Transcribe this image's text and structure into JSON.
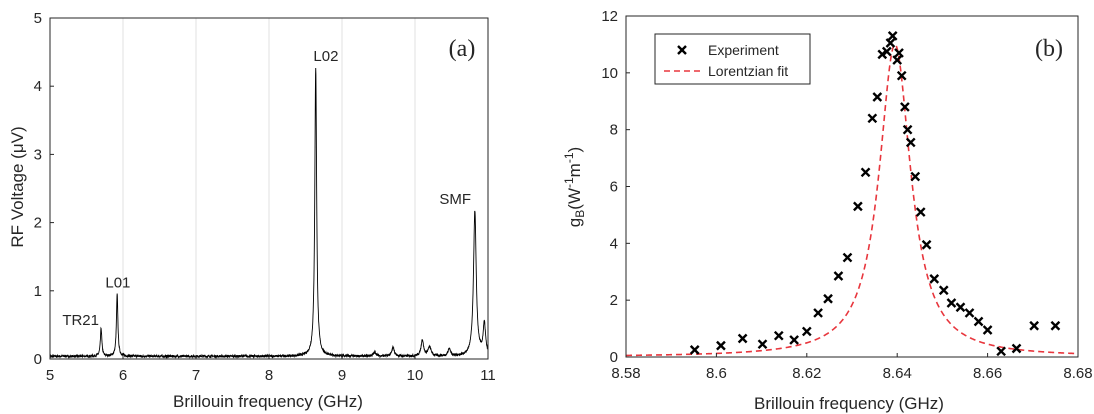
{
  "chart_data": [
    {
      "type": "line",
      "panel_label": "(a)",
      "xlabel": "Brillouin frequency (GHz)",
      "ylabel": "RF Voltage (μV)",
      "xlim": [
        5,
        11
      ],
      "ylim": [
        0,
        5
      ],
      "xticks": [
        "5",
        "6",
        "7",
        "8",
        "9",
        "10",
        "11"
      ],
      "yticks": [
        "0",
        "1",
        "2",
        "3",
        "4",
        "5"
      ],
      "grid": "x-vertical-only",
      "series_color": "#000000",
      "baseline": 0.04,
      "peaks": [
        {
          "x": 5.7,
          "y": 0.45,
          "width": 0.012
        },
        {
          "x": 5.92,
          "y": 0.95,
          "width": 0.012
        },
        {
          "x": 8.64,
          "y": 4.28,
          "width": 0.015
        },
        {
          "x": 9.45,
          "y": 0.1,
          "width": 0.02
        },
        {
          "x": 9.7,
          "y": 0.17,
          "width": 0.02
        },
        {
          "x": 10.1,
          "y": 0.28,
          "width": 0.02
        },
        {
          "x": 10.2,
          "y": 0.17,
          "width": 0.025
        },
        {
          "x": 10.47,
          "y": 0.15,
          "width": 0.02
        },
        {
          "x": 10.82,
          "y": 2.17,
          "width": 0.022
        },
        {
          "x": 10.95,
          "y": 0.5,
          "width": 0.02
        }
      ],
      "annotations": [
        {
          "text": "TR21",
          "x": 5.42,
          "y": 0.5
        },
        {
          "text": "L01",
          "x": 5.93,
          "y": 1.05
        },
        {
          "text": "L02",
          "x": 8.78,
          "y": 4.37
        },
        {
          "text": "SMF",
          "x": 10.55,
          "y": 2.27
        }
      ]
    },
    {
      "type": "scatter",
      "panel_label": "(b)",
      "xlabel": "Brillouin frequency (GHz)",
      "ylabel": "g_B (W^-1 m^-1)",
      "ylabel_parts": {
        "main": "g",
        "sub": "B",
        "open": "(W",
        "sup1": "-1",
        "mid": "m",
        "sup2": "-1",
        "close": ")"
      },
      "xlim": [
        8.58,
        8.68
      ],
      "ylim": [
        0,
        12
      ],
      "xticks": [
        "8.58",
        "8.6",
        "8.62",
        "8.64",
        "8.66",
        "8.68"
      ],
      "yticks": [
        "0",
        "2",
        "4",
        "6",
        "8",
        "10",
        "12"
      ],
      "grid": "none",
      "legend": {
        "position": "top-left",
        "entries": [
          "Experiment",
          "Lorentzian fit"
        ]
      },
      "series": [
        {
          "name": "Experiment",
          "marker": "x",
          "color": "#000000",
          "x": [
            8.5952,
            8.601,
            8.6058,
            8.6102,
            8.6138,
            8.6172,
            8.62,
            8.6225,
            8.6247,
            8.627,
            8.629,
            8.6313,
            8.633,
            8.6345,
            8.6356,
            8.6367,
            8.6377,
            8.6385,
            8.639,
            8.64,
            8.6404,
            8.641,
            8.6417,
            8.6423,
            8.643,
            8.644,
            8.6452,
            8.6465,
            8.6482,
            8.6503,
            8.652,
            8.654,
            8.656,
            8.658,
            8.66,
            8.663,
            8.6664,
            8.6703,
            8.675
          ],
          "y": [
            0.25,
            0.4,
            0.65,
            0.45,
            0.75,
            0.6,
            0.9,
            1.55,
            2.05,
            2.85,
            3.5,
            5.3,
            6.5,
            8.4,
            9.15,
            10.65,
            10.75,
            11.05,
            11.3,
            10.45,
            10.7,
            9.9,
            8.8,
            8.0,
            7.55,
            6.35,
            5.1,
            3.95,
            2.75,
            2.35,
            1.9,
            1.75,
            1.55,
            1.25,
            0.95,
            0.2,
            0.3,
            1.1,
            1.1
          ]
        },
        {
          "name": "Lorentzian fit",
          "style": "dashed",
          "color": "#e8363d",
          "peak_x": 8.6395,
          "peak_y": 11.0,
          "fwhm": 0.0085
        }
      ]
    }
  ]
}
